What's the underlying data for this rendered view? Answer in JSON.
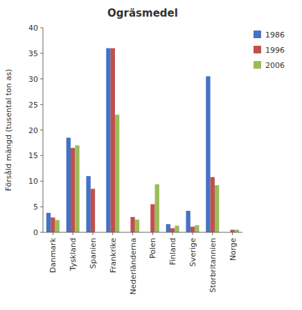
{
  "chart_data": {
    "type": "bar",
    "title": "Ogräsmedel",
    "ylabel": "Försåld mängd (tusental ton as)",
    "categories": [
      "Danmark",
      "Tyskland",
      "Spanien",
      "Frankrike",
      "Nederländerna",
      "Polen",
      "Finland",
      "Sverige",
      "Storbritannien",
      "Norge"
    ],
    "series": [
      {
        "name": "1986",
        "color": "#4472C4",
        "values": [
          3.8,
          18.5,
          11.0,
          36.0,
          0.0,
          0.0,
          1.6,
          4.2,
          30.5,
          0.0
        ]
      },
      {
        "name": "1996",
        "color": "#C0504D",
        "values": [
          2.9,
          16.5,
          8.5,
          36.0,
          3.0,
          5.5,
          0.8,
          1.1,
          10.8,
          0.5
        ]
      },
      {
        "name": "2006",
        "color": "#9BBB59",
        "values": [
          2.4,
          17.0,
          0.0,
          23.0,
          2.5,
          9.4,
          1.3,
          1.4,
          9.2,
          0.5
        ]
      }
    ],
    "ylim": [
      0,
      40
    ],
    "yticks": [
      0,
      5,
      10,
      15,
      20,
      25,
      30,
      35,
      40
    ],
    "grid": false,
    "legend": "right"
  }
}
